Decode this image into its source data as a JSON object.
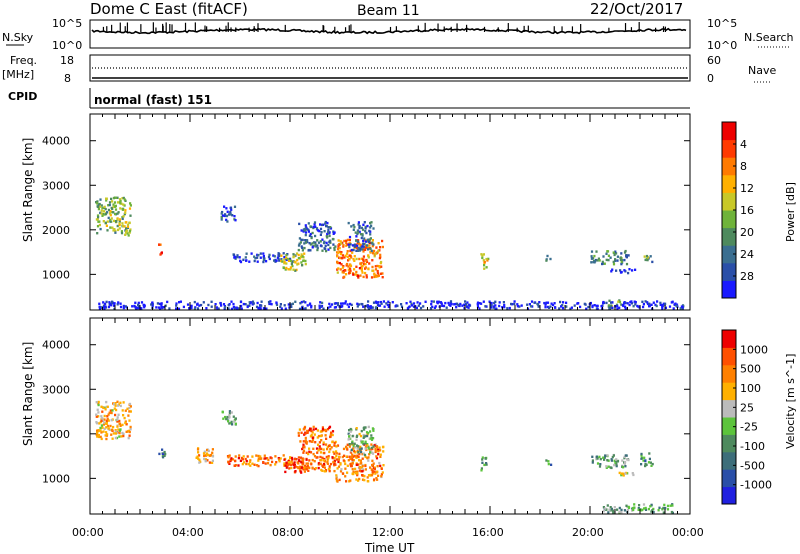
{
  "header": {
    "station": "Dome C East (fitACF)",
    "beam": "Beam 11",
    "date": "22/Oct/2017"
  },
  "nsky_panel": {
    "label": "N.Sky",
    "right_label": "N.Search",
    "ticks_left": [
      "10^5",
      "10^0"
    ],
    "ticks_right": [
      "10^5",
      "10^0"
    ]
  },
  "freq_panel": {
    "label_top": "Freq.",
    "label_unit": "[MHz]",
    "right_label": "Nave",
    "ticks_left": [
      "18",
      "8"
    ],
    "ticks_right": [
      "60",
      "0"
    ]
  },
  "cpid_panel": {
    "label": "CPID",
    "value": "normal (fast) 151"
  },
  "chart_data": [
    {
      "type": "heatmap",
      "name": "power",
      "ylabel": "Slant Range [km]",
      "xlabel": "Time UT",
      "ylim": [
        200,
        4600
      ],
      "yticks": [
        "1000",
        "2000",
        "3000",
        "4000"
      ],
      "xticks": [
        "00:00",
        "04:00",
        "08:00",
        "12:00",
        "16:00",
        "20:00",
        "00:00"
      ],
      "colorbar": {
        "label": "Power [dB]",
        "ticks": [
          "4",
          "8",
          "12",
          "16",
          "20",
          "24",
          "28"
        ],
        "colors": [
          "#1a1aff",
          "#2a4fa8",
          "#3a6e90",
          "#4e8a5e",
          "#6fb33a",
          "#c8c828",
          "#ffb000",
          "#ff7a00",
          "#ff3a00",
          "#ee0000"
        ]
      },
      "echo_regions": [
        {
          "t": [
            0.2,
            1.6
          ],
          "r": [
            1900,
            2750
          ],
          "level": 0.45
        },
        {
          "t": [
            2.7,
            2.9
          ],
          "r": [
            1450,
            1700
          ],
          "level": 0.85
        },
        {
          "t": [
            5.2,
            5.8
          ],
          "r": [
            2200,
            2550
          ],
          "level": 0.15
        },
        {
          "t": [
            5.6,
            8.2
          ],
          "r": [
            1300,
            1500
          ],
          "level": 0.1
        },
        {
          "t": [
            7.6,
            8.6
          ],
          "r": [
            1100,
            1500
          ],
          "level": 0.5
        },
        {
          "t": [
            8.3,
            9.8
          ],
          "r": [
            1550,
            2200
          ],
          "level": 0.2
        },
        {
          "t": [
            9.8,
            11.7
          ],
          "r": [
            950,
            1800
          ],
          "level": 0.75
        },
        {
          "t": [
            10.3,
            11.3
          ],
          "r": [
            1550,
            2200
          ],
          "level": 0.2
        },
        {
          "t": [
            15.6,
            15.9
          ],
          "r": [
            1150,
            1500
          ],
          "level": 0.6
        },
        {
          "t": [
            18.2,
            18.4
          ],
          "r": [
            1300,
            1450
          ],
          "level": 0.3
        },
        {
          "t": [
            20.0,
            21.5
          ],
          "r": [
            1250,
            1550
          ],
          "level": 0.3
        },
        {
          "t": [
            20.8,
            21.8
          ],
          "r": [
            1050,
            1150
          ],
          "level": 0.05
        },
        {
          "t": [
            22.0,
            22.5
          ],
          "r": [
            1300,
            1450
          ],
          "level": 0.35
        },
        {
          "t": [
            20.7,
            21.3
          ],
          "r": [
            300,
            450
          ],
          "level": 0.45
        },
        {
          "t": [
            0.3,
            23.7
          ],
          "r": [
            250,
            420
          ],
          "level": 0.05
        }
      ]
    },
    {
      "type": "heatmap",
      "name": "velocity",
      "ylabel": "Slant Range [km]",
      "xlabel": "Time UT",
      "ylim": [
        200,
        4600
      ],
      "yticks": [
        "1000",
        "2000",
        "3000",
        "4000"
      ],
      "xticks": [
        "00:00",
        "04:00",
        "08:00",
        "12:00",
        "16:00",
        "20:00",
        "00:00"
      ],
      "colorbar": {
        "label": "Velocity [m s^-1]",
        "ticks": [
          "1000",
          "500",
          "100",
          "25",
          "-25",
          "-100",
          "-500",
          "-1000"
        ],
        "colors": [
          "#2020e0",
          "#2a4fa8",
          "#3d6e7a",
          "#4e8a5e",
          "#5cc43c",
          "#bbbbbb",
          "#ffb000",
          "#ff8000",
          "#ff5000",
          "#ee0000"
        ]
      },
      "echo_regions": [
        {
          "t": [
            0.2,
            1.6
          ],
          "r": [
            1900,
            2750
          ],
          "level": 0.65
        },
        {
          "t": [
            2.7,
            3.0
          ],
          "r": [
            1450,
            1700
          ],
          "level": 0.25
        },
        {
          "t": [
            4.2,
            5.0
          ],
          "r": [
            1350,
            1700
          ],
          "level": 0.7
        },
        {
          "t": [
            5.2,
            5.8
          ],
          "r": [
            2200,
            2550
          ],
          "level": 0.4
        },
        {
          "t": [
            5.4,
            8.2
          ],
          "r": [
            1300,
            1550
          ],
          "level": 0.8
        },
        {
          "t": [
            7.6,
            8.6
          ],
          "r": [
            1150,
            1500
          ],
          "level": 0.85
        },
        {
          "t": [
            8.3,
            9.8
          ],
          "r": [
            1150,
            2200
          ],
          "level": 0.8
        },
        {
          "t": [
            9.8,
            11.7
          ],
          "r": [
            950,
            1800
          ],
          "level": 0.75
        },
        {
          "t": [
            10.3,
            11.3
          ],
          "r": [
            1550,
            2200
          ],
          "level": 0.45
        },
        {
          "t": [
            15.6,
            15.9
          ],
          "r": [
            1200,
            1500
          ],
          "level": 0.3
        },
        {
          "t": [
            18.2,
            18.4
          ],
          "r": [
            1300,
            1450
          ],
          "level": 0.3
        },
        {
          "t": [
            20.0,
            21.5
          ],
          "r": [
            1250,
            1550
          ],
          "level": 0.4
        },
        {
          "t": [
            20.8,
            21.8
          ],
          "r": [
            1050,
            1150
          ],
          "level": 0.55
        },
        {
          "t": [
            22.0,
            22.5
          ],
          "r": [
            1300,
            1600
          ],
          "level": 0.35
        },
        {
          "t": [
            20.5,
            23.3
          ],
          "r": [
            250,
            450
          ],
          "level": 0.4
        }
      ]
    }
  ]
}
